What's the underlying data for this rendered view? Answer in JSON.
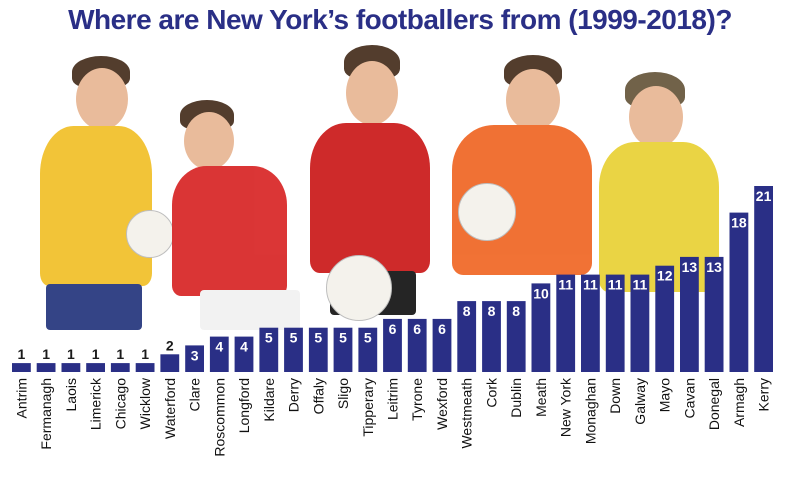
{
  "title": "Where are New York’s footballers from (1999-2018)?",
  "chart_data": {
    "type": "bar",
    "categories": [
      "Antrim",
      "Fermanagh",
      "Laois",
      "Limerick",
      "Chicago",
      "Wicklow",
      "Waterford",
      "Clare",
      "Roscommon",
      "Longford",
      "Kildare",
      "Derry",
      "Offaly",
      "Sligo",
      "Tipperary",
      "Leitrim",
      "Tyrone",
      "Wexford",
      "Westmeath",
      "Cork",
      "Dublin",
      "Meath",
      "New York",
      "Monaghan",
      "Down",
      "Galway",
      "Mayo",
      "Cavan",
      "Donegal",
      "Armagh",
      "Kerry"
    ],
    "values": [
      1,
      1,
      1,
      1,
      1,
      1,
      2,
      3,
      4,
      4,
      5,
      5,
      5,
      5,
      5,
      6,
      6,
      6,
      8,
      8,
      8,
      10,
      11,
      11,
      11,
      11,
      12,
      13,
      13,
      18,
      21
    ],
    "xlabel": "",
    "ylabel": "",
    "ylim": [
      0,
      21
    ],
    "grid": false,
    "bar_color": "#2a2f86",
    "label_color": "#ffffff",
    "small_label_color": "#1a1a1a"
  },
  "decor": {
    "players": [
      {
        "name": "player-roscommon",
        "jersey": "#f2c12e",
        "shorts": "#2a3a80"
      },
      {
        "name": "player-louth",
        "jersey": "#d92b2b",
        "shorts": "#f2f2f2"
      },
      {
        "name": "player-down",
        "jersey": "#cc1f1f",
        "shorts": "#1a1a1a"
      },
      {
        "name": "player-armagh",
        "jersey": "#f06a2a",
        "shorts": "#ffffff"
      },
      {
        "name": "player-donegal",
        "jersey": "#e9d23a",
        "shorts": "#2d8a3a"
      }
    ]
  }
}
